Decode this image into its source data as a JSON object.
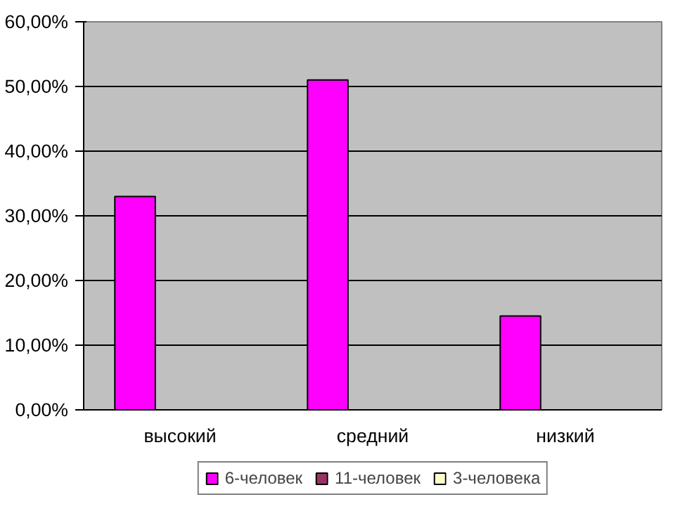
{
  "chart_data": {
    "type": "bar",
    "categories": [
      "высокий",
      "средний",
      "низкий"
    ],
    "series": [
      {
        "name": "6-человек",
        "color": "#ff00ff",
        "values": [
          33,
          51,
          14.5
        ]
      },
      {
        "name": "11-человек",
        "color": "#993366",
        "values": [
          null,
          null,
          null
        ]
      },
      {
        "name": "3-человека",
        "color": "#ffffcc",
        "values": [
          null,
          null,
          null
        ]
      }
    ],
    "ylim": [
      0,
      60
    ],
    "yticks": [
      {
        "value": 0,
        "label": "0,00%"
      },
      {
        "value": 10,
        "label": "10,00%"
      },
      {
        "value": 20,
        "label": "20,00%"
      },
      {
        "value": 30,
        "label": "30,00%"
      },
      {
        "value": 40,
        "label": "40,00%"
      },
      {
        "value": 50,
        "label": "50,00%"
      },
      {
        "value": 60,
        "label": "60,00%"
      }
    ],
    "grid": "y",
    "legend": "bottom"
  }
}
